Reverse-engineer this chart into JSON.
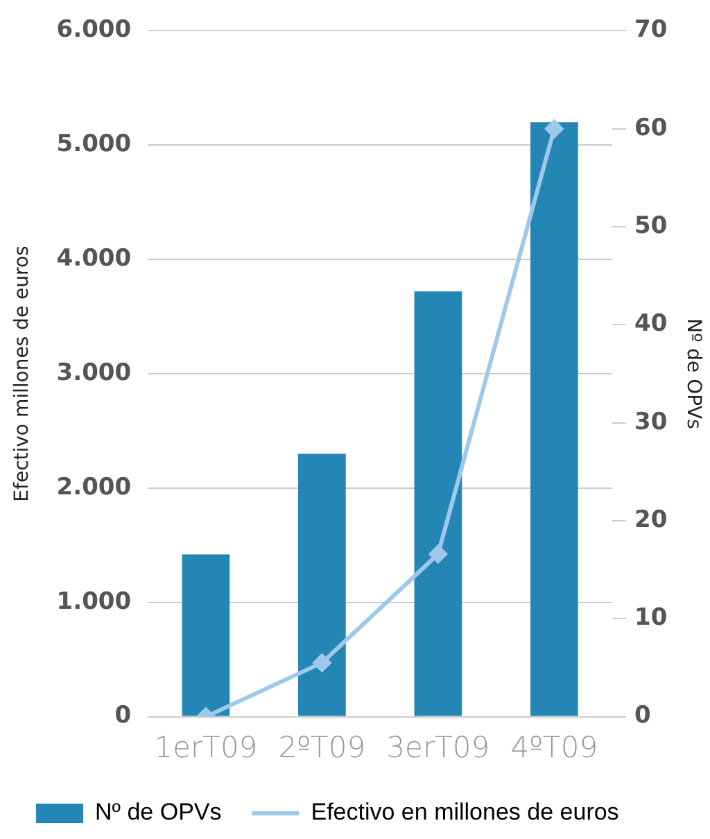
{
  "chart_data": {
    "type": "bar",
    "categories": [
      "1erT09",
      "2ºT09",
      "3erT09",
      "4ºT09"
    ],
    "ylabel": "Efectivo millones de euros",
    "y2label": "Nº de OPVs",
    "ylim": [
      0,
      6000
    ],
    "yticks": [
      {
        "value": 0,
        "label": "0"
      },
      {
        "value": 1000,
        "label": "1.000"
      },
      {
        "value": 2000,
        "label": "2.000"
      },
      {
        "value": 3000,
        "label": "3.000"
      },
      {
        "value": 4000,
        "label": "4.000"
      },
      {
        "value": 5000,
        "label": "5.000"
      },
      {
        "value": 6000,
        "label": "6.000"
      }
    ],
    "y2lim": [
      0,
      70
    ],
    "y2ticks": [
      0,
      10,
      20,
      30,
      40,
      50,
      60,
      70
    ],
    "series": [
      {
        "name": "Nº de OPVs",
        "color": "#2386b5",
        "values": [
          1420,
          2300,
          3720,
          5200
        ]
      },
      {
        "name": "Efectivo en millones de euros",
        "type": "line",
        "axis": "y2",
        "color": "#9fc9ea",
        "values": [
          0,
          5.5,
          16.6,
          60
        ],
        "marker": "diamond"
      }
    ],
    "grid": "y",
    "legend": "bottom"
  }
}
